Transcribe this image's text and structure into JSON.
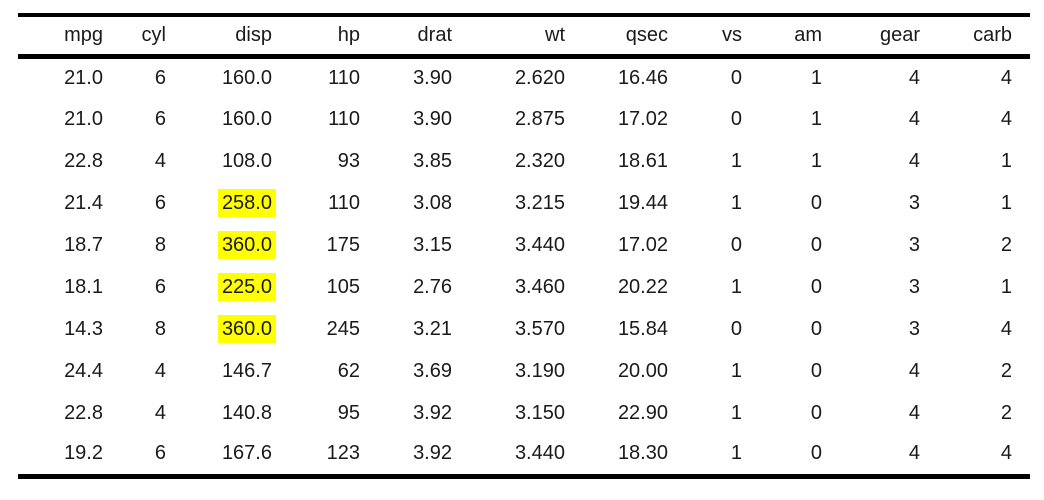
{
  "chart_data": {
    "type": "table",
    "columns": [
      "mpg",
      "cyl",
      "disp",
      "hp",
      "drat",
      "wt",
      "qsec",
      "vs",
      "am",
      "gear",
      "carb"
    ],
    "rows": [
      [
        "21.0",
        "6",
        "160.0",
        "110",
        "3.90",
        "2.620",
        "16.46",
        "0",
        "1",
        "4",
        "4"
      ],
      [
        "21.0",
        "6",
        "160.0",
        "110",
        "3.90",
        "2.875",
        "17.02",
        "0",
        "1",
        "4",
        "4"
      ],
      [
        "22.8",
        "4",
        "108.0",
        "93",
        "3.85",
        "2.320",
        "18.61",
        "1",
        "1",
        "4",
        "1"
      ],
      [
        "21.4",
        "6",
        "258.0",
        "110",
        "3.08",
        "3.215",
        "19.44",
        "1",
        "0",
        "3",
        "1"
      ],
      [
        "18.7",
        "8",
        "360.0",
        "175",
        "3.15",
        "3.440",
        "17.02",
        "0",
        "0",
        "3",
        "2"
      ],
      [
        "18.1",
        "6",
        "225.0",
        "105",
        "2.76",
        "3.460",
        "20.22",
        "1",
        "0",
        "3",
        "1"
      ],
      [
        "14.3",
        "8",
        "360.0",
        "245",
        "3.21",
        "3.570",
        "15.84",
        "0",
        "0",
        "3",
        "4"
      ],
      [
        "24.4",
        "4",
        "146.7",
        "62",
        "3.69",
        "3.190",
        "20.00",
        "1",
        "0",
        "4",
        "2"
      ],
      [
        "22.8",
        "4",
        "140.8",
        "95",
        "3.92",
        "3.150",
        "22.90",
        "1",
        "0",
        "4",
        "2"
      ],
      [
        "19.2",
        "6",
        "167.6",
        "123",
        "3.92",
        "3.440",
        "18.30",
        "1",
        "0",
        "4",
        "4"
      ]
    ],
    "highlighted_cells": [
      {
        "row": 3,
        "col": 2
      },
      {
        "row": 4,
        "col": 2
      },
      {
        "row": 5,
        "col": 2
      },
      {
        "row": 6,
        "col": 2
      }
    ],
    "highlight_color": "#ffff00",
    "text_color": "#1a1a1a",
    "rule_color": "#000000",
    "background_color": "#ffffff",
    "grid": "booktabs-rules-only",
    "alignment": "right"
  }
}
